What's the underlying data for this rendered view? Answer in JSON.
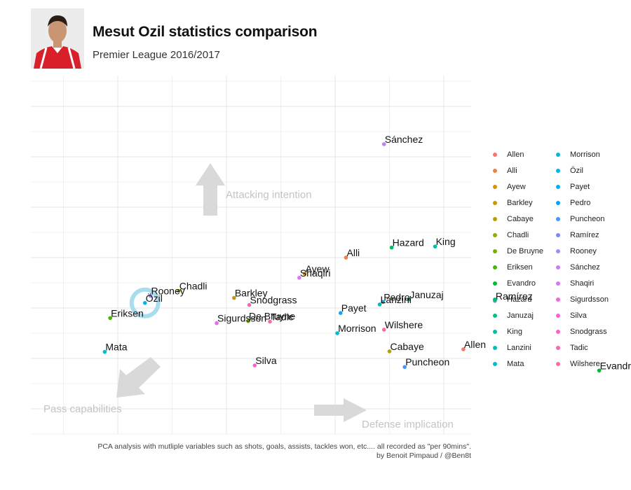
{
  "header": {
    "title": "Mesut Ozil statistics comparison",
    "subtitle": "Premier League 2016/2017"
  },
  "caption": {
    "line1": "PCA analysis with mutliple variables such as shots, goals, assists, tackles won, etc.... all recorded as \"per 90mins\".",
    "line2": "by Benoit Pimpaud / @Ben8t"
  },
  "colors": {
    "grid": "#e6e6e6",
    "arrow": "#d9d9d9",
    "annotation_text": "#c4c4c4",
    "highlight_ring": "#a9ddee",
    "kit_red": "#d9202a"
  },
  "chart_data": {
    "type": "scatter",
    "title": "Mesut Ozil statistics comparison",
    "subtitle": "Premier League 2016/2017",
    "xlim": [
      -1.6,
      5.8
    ],
    "ylim": [
      -2.0,
      5.0
    ],
    "grid": true,
    "highlight": "Özil",
    "annotations": [
      {
        "text": "Attacking intention",
        "arrow": "up"
      },
      {
        "text": "Pass capabilities",
        "arrow": "down-left"
      },
      {
        "text": "Defense implication",
        "arrow": "right"
      }
    ],
    "legend": {
      "position": "right",
      "columns": 2
    },
    "points": [
      {
        "name": "Allen",
        "label": "Allen",
        "x": 3.18,
        "y": -0.82,
        "color": "#F8766D"
      },
      {
        "name": "Alli",
        "label": "Alli",
        "x": 2.1,
        "y": 1.0,
        "color": "#ED813E"
      },
      {
        "name": "Ayew",
        "label": "Ayew",
        "x": 1.72,
        "y": 0.68,
        "color": "#DE8C00"
      },
      {
        "name": "Barkley",
        "label": "Barkley",
        "x": 1.07,
        "y": 0.2,
        "color": "#CD9600"
      },
      {
        "name": "Cabaye",
        "label": "Cabaye",
        "x": 2.5,
        "y": -0.86,
        "color": "#B79F00"
      },
      {
        "name": "Chadli",
        "label": "Chadli",
        "x": 0.56,
        "y": 0.34,
        "color": "#9CA700"
      },
      {
        "name": "De Bruyne",
        "label": "De Bruyne",
        "x": 1.2,
        "y": -0.26,
        "color": "#7CAE00"
      },
      {
        "name": "Eriksen",
        "label": "Eriksen",
        "x": -0.07,
        "y": -0.2,
        "color": "#49B500"
      },
      {
        "name": "Evandro",
        "label": "Evandro",
        "x": 4.43,
        "y": -1.24,
        "color": "#00BA38"
      },
      {
        "name": "Hazard",
        "label": "Hazard",
        "x": 2.52,
        "y": 1.2,
        "color": "#00BE67"
      },
      {
        "name": "Januzaj",
        "label": "Januzaj",
        "x": 2.68,
        "y": 0.17,
        "color": "#00C086"
      },
      {
        "name": "King",
        "label": "King",
        "x": 2.92,
        "y": 1.22,
        "color": "#00C19F"
      },
      {
        "name": "Lanzini",
        "label": "Lanzini",
        "x": 2.41,
        "y": 0.07,
        "color": "#00C0B4"
      },
      {
        "name": "Mata",
        "label": "Mata",
        "x": -0.12,
        "y": -0.87,
        "color": "#00BEC9"
      },
      {
        "name": "Morrison",
        "label": "Morrison",
        "x": 2.02,
        "y": -0.5,
        "color": "#00BADC"
      },
      {
        "name": "Özil",
        "label": "Özil",
        "x": 0.25,
        "y": 0.1,
        "color": "#00B4EE"
      },
      {
        "name": "Payet",
        "label": "Payet",
        "x": 2.05,
        "y": -0.1,
        "color": "#00ACFC"
      },
      {
        "name": "Pedro",
        "label": "Pedro",
        "x": 2.44,
        "y": 0.12,
        "color": "#00A2FF"
      },
      {
        "name": "Puncheon",
        "label": "Puncheon",
        "x": 2.64,
        "y": -1.17,
        "color": "#4496FF"
      },
      {
        "name": "Ramírez",
        "label": "Ramírez",
        "x": 3.47,
        "y": 0.14,
        "color": "#7F87FF"
      },
      {
        "name": "Rooney",
        "label": "Rooney",
        "x": 0.3,
        "y": 0.24,
        "color": "#A58AFF"
      },
      {
        "name": "Sánchez",
        "label": "Sánchez",
        "x": 2.45,
        "y": 3.25,
        "color": "#C77CFF"
      },
      {
        "name": "Shaqiri",
        "label": "Shaqiri",
        "x": 1.67,
        "y": 0.6,
        "color": "#DF70F8"
      },
      {
        "name": "Sigurdsson",
        "label": "Sigurdsson",
        "x": 0.91,
        "y": -0.3,
        "color": "#F066EA"
      },
      {
        "name": "Silva",
        "label": "Silva",
        "x": 1.26,
        "y": -1.14,
        "color": "#FB61D7"
      },
      {
        "name": "Snodgrass",
        "label": "Snodgrass",
        "x": 1.21,
        "y": 0.06,
        "color": "#FF61C2"
      },
      {
        "name": "Tadic",
        "label": "Tadic",
        "x": 1.4,
        "y": -0.27,
        "color": "#FF65AA"
      },
      {
        "name": "Wilshere",
        "label": "Wilshere",
        "x": 2.45,
        "y": -0.43,
        "color": "#FF6C91"
      }
    ],
    "legend_order": [
      "Allen",
      "Alli",
      "Ayew",
      "Barkley",
      "Cabaye",
      "Chadli",
      "De Bruyne",
      "Eriksen",
      "Evandro",
      "Hazard",
      "Januzaj",
      "King",
      "Lanzini",
      "Mata",
      "Morrison",
      "Özil",
      "Payet",
      "Pedro",
      "Puncheon",
      "Ramírez",
      "Rooney",
      "Sánchez",
      "Shaqiri",
      "Sigurdsson",
      "Silva",
      "Snodgrass",
      "Tadic",
      "Wilshere"
    ]
  }
}
